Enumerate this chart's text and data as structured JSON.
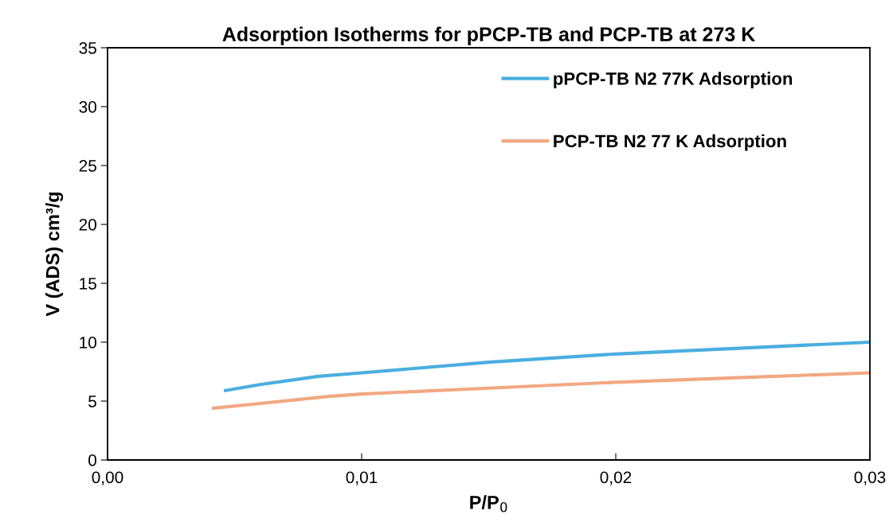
{
  "chart_data": {
    "type": "line",
    "title": "Adsorption Isotherms for pPCP-TB and PCP-TB at 273 K",
    "xlabel": "P/P$_{0}$",
    "ylabel": "V (ADS) cm³/g",
    "xlim": [
      0,
      0.03
    ],
    "xticks": [
      {
        "value": 0,
        "label": "0,00"
      },
      {
        "value": 0.01,
        "label": "0,01"
      },
      {
        "value": 0.02,
        "label": "0,02"
      },
      {
        "value": 0.03,
        "label": "0,03"
      }
    ],
    "ylim": [
      0,
      35
    ],
    "yticks": [
      0,
      5,
      10,
      15,
      20,
      25,
      30,
      35
    ],
    "grid": false,
    "legend": "top right",
    "marker": "none",
    "line_style": "solid",
    "series": [
      {
        "name": "pPCP-TB N2 77K Adsorption",
        "color": "#4aaee0",
        "x": [
          0.00464,
          0.006,
          0.0083,
          0.01,
          0.015,
          0.02,
          0.025,
          0.03
        ],
        "values": [
          5.9,
          6.4,
          7.1,
          7.4,
          8.3,
          9.0,
          9.5,
          10.0
        ]
      },
      {
        "name": "PCP-TB N2 77 K Adsorption",
        "color": "#f2a882",
        "x": [
          0.00417,
          0.006,
          0.0087,
          0.01,
          0.015,
          0.02,
          0.025,
          0.03
        ],
        "values": [
          4.4,
          4.8,
          5.4,
          5.6,
          6.1,
          6.6,
          7.0,
          7.4
        ]
      }
    ]
  }
}
